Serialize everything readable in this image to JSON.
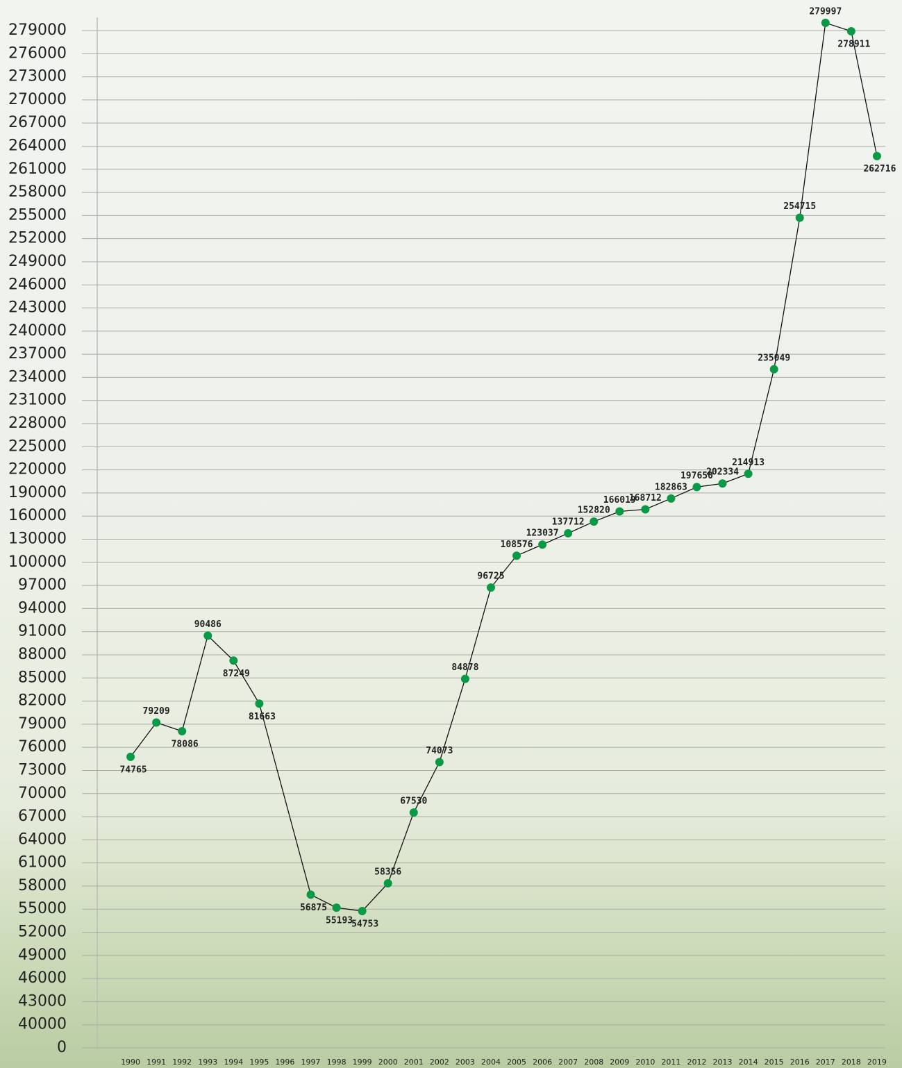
{
  "chart_data": {
    "type": "line",
    "x": [
      1990,
      1991,
      1992,
      1993,
      1994,
      1995,
      1997,
      1998,
      1999,
      2000,
      2001,
      2002,
      2003,
      2004,
      2005,
      2006,
      2007,
      2008,
      2009,
      2010,
      2011,
      2012,
      2013,
      2014,
      2015,
      2016,
      2017,
      2018,
      2019
    ],
    "values": [
      74765,
      79209,
      78086,
      90486,
      87249,
      81663,
      56875,
      55193,
      54753,
      58356,
      67530,
      74073,
      84878,
      96725,
      108576,
      123037,
      137712,
      152820,
      166019,
      168712,
      182863,
      197650,
      202334,
      214913,
      235049,
      254715,
      279997,
      278911,
      262716
    ],
    "color": "#0a9a46",
    "line_color": "#111111",
    "xlim": [
      1989,
      2020
    ],
    "xticks": [
      1990,
      1991,
      1992,
      1993,
      1994,
      1995,
      1996,
      1997,
      1998,
      1999,
      2000,
      2001,
      2002,
      2003,
      2004,
      2005,
      2006,
      2007,
      2008,
      2009,
      2010,
      2011,
      2012,
      2013,
      2014,
      2015,
      2016,
      2017,
      2018,
      2019
    ],
    "ylim": [
      0,
      280000
    ],
    "yticks": [
      0,
      40000,
      43000,
      46000,
      49000,
      52000,
      55000,
      58000,
      61000,
      64000,
      67000,
      70000,
      73000,
      76000,
      79000,
      82000,
      85000,
      88000,
      91000,
      94000,
      97000,
      100000,
      130000,
      160000,
      190000,
      220000,
      225000,
      228000,
      231000,
      234000,
      237000,
      240000,
      243000,
      246000,
      249000,
      252000,
      255000,
      258000,
      261000,
      264000,
      267000,
      270000,
      273000,
      276000,
      279000
    ],
    "grid": true
  }
}
